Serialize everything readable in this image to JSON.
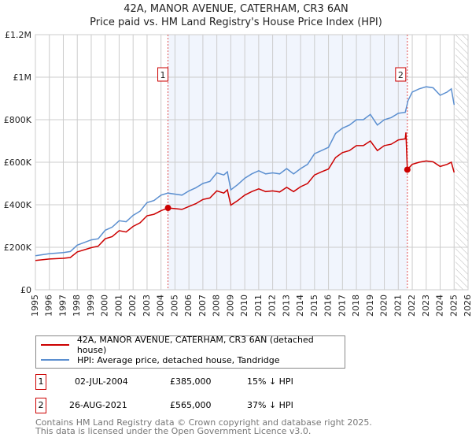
{
  "title": "42A, MANOR AVENUE, CATERHAM, CR3 6AN",
  "subtitle": "Price paid vs. HM Land Registry's House Price Index (HPI)",
  "chart_data": {
    "type": "line",
    "xlim": [
      1995,
      2026
    ],
    "ylim": [
      0,
      1200000
    ],
    "x_ticks": [
      "1995",
      "1996",
      "1997",
      "1998",
      "1999",
      "2000",
      "2001",
      "2002",
      "2003",
      "2004",
      "2005",
      "2006",
      "2007",
      "2008",
      "2009",
      "2010",
      "2011",
      "2012",
      "2013",
      "2014",
      "2015",
      "2016",
      "2017",
      "2018",
      "2019",
      "2020",
      "2021",
      "2022",
      "2023",
      "2024",
      "2025",
      "2026"
    ],
    "y_ticks": [
      {
        "v": 0,
        "label": "£0"
      },
      {
        "v": 200000,
        "label": "£200K"
      },
      {
        "v": 400000,
        "label": "£400K"
      },
      {
        "v": 600000,
        "label": "£600K"
      },
      {
        "v": 800000,
        "label": "£800K"
      },
      {
        "v": 1000000,
        "label": "£1M"
      },
      {
        "v": 1200000,
        "label": "£1.2M"
      }
    ],
    "shaded_range": [
      2004.5,
      2021.65
    ],
    "hatched_range": [
      2025.1,
      2026
    ],
    "series": [
      {
        "name": "42A, MANOR AVENUE, CATERHAM, CR3 6AN (detached house)",
        "color": "#cc0000",
        "x": [
          1995,
          1996,
          1997,
          1997.5,
          1998,
          1999,
          1999.5,
          2000,
          2000.5,
          2001,
          2001.5,
          2002,
          2002.5,
          2003,
          2003.5,
          2004,
          2004.5,
          2005,
          2005.5,
          2006,
          2006.5,
          2007,
          2007.5,
          2008,
          2008.5,
          2008.75,
          2009,
          2009.5,
          2010,
          2010.5,
          2011,
          2011.5,
          2012,
          2012.5,
          2013,
          2013.5,
          2014,
          2014.5,
          2015,
          2015.5,
          2016,
          2016.5,
          2017,
          2017.5,
          2018,
          2018.5,
          2019,
          2019.5,
          2020,
          2020.5,
          2021,
          2021.5,
          2021.55,
          2021.65,
          2022,
          2022.5,
          2023,
          2023.5,
          2024,
          2024.5,
          2024.8,
          2025
        ],
        "y": [
          138000,
          145000,
          148000,
          152000,
          178000,
          198000,
          205000,
          240000,
          250000,
          278000,
          272000,
          298000,
          315000,
          348000,
          355000,
          372000,
          385000,
          382000,
          378000,
          392000,
          405000,
          425000,
          432000,
          465000,
          455000,
          470000,
          398000,
          420000,
          445000,
          462000,
          475000,
          462000,
          465000,
          460000,
          482000,
          462000,
          485000,
          500000,
          540000,
          555000,
          568000,
          622000,
          645000,
          655000,
          678000,
          678000,
          700000,
          655000,
          678000,
          685000,
          705000,
          710000,
          740000,
          565000,
          590000,
          600000,
          606000,
          602000,
          580000,
          590000,
          600000,
          552000
        ]
      },
      {
        "name": "HPI: Average price, detached house, Tandridge",
        "color": "#5b8fd0",
        "x": [
          1995,
          1996,
          1997,
          1997.5,
          1998,
          1999,
          1999.5,
          2000,
          2000.5,
          2001,
          2001.5,
          2002,
          2002.5,
          2003,
          2003.5,
          2004,
          2004.5,
          2005,
          2005.5,
          2006,
          2006.5,
          2007,
          2007.5,
          2008,
          2008.5,
          2008.75,
          2009,
          2009.5,
          2010,
          2010.5,
          2011,
          2011.5,
          2012,
          2012.5,
          2013,
          2013.5,
          2014,
          2014.5,
          2015,
          2015.5,
          2016,
          2016.5,
          2017,
          2017.5,
          2018,
          2018.5,
          2019,
          2019.5,
          2020,
          2020.5,
          2021,
          2021.5,
          2021.7,
          2022,
          2022.5,
          2023,
          2023.5,
          2024,
          2024.5,
          2024.8,
          2025
        ],
        "y": [
          160000,
          170000,
          175000,
          180000,
          210000,
          235000,
          240000,
          280000,
          295000,
          325000,
          320000,
          350000,
          370000,
          410000,
          420000,
          445000,
          455000,
          450000,
          445000,
          465000,
          480000,
          500000,
          510000,
          550000,
          540000,
          555000,
          470000,
          495000,
          525000,
          545000,
          560000,
          545000,
          550000,
          545000,
          570000,
          545000,
          570000,
          590000,
          640000,
          655000,
          670000,
          735000,
          760000,
          775000,
          800000,
          800000,
          825000,
          775000,
          800000,
          810000,
          830000,
          835000,
          890000,
          930000,
          945000,
          955000,
          950000,
          915000,
          930000,
          945000,
          870000
        ]
      }
    ],
    "sales": [
      {
        "label": "1",
        "x": 2004.5,
        "y": 385000
      },
      {
        "label": "2",
        "x": 2021.65,
        "y": 565000
      }
    ]
  },
  "legend": {
    "property": "42A, MANOR AVENUE, CATERHAM, CR3 6AN (detached house)",
    "hpi": "HPI: Average price, detached house, Tandridge"
  },
  "transactions": [
    {
      "num": "1",
      "date": "02-JUL-2004",
      "price": "£385,000",
      "hpi": "15% ↓ HPI"
    },
    {
      "num": "2",
      "date": "26-AUG-2021",
      "price": "£565,000",
      "hpi": "37% ↓ HPI"
    }
  ],
  "footer": [
    "Contains HM Land Registry data © Crown copyright and database right 2025.",
    "This data is licensed under the Open Government Licence v3.0."
  ]
}
